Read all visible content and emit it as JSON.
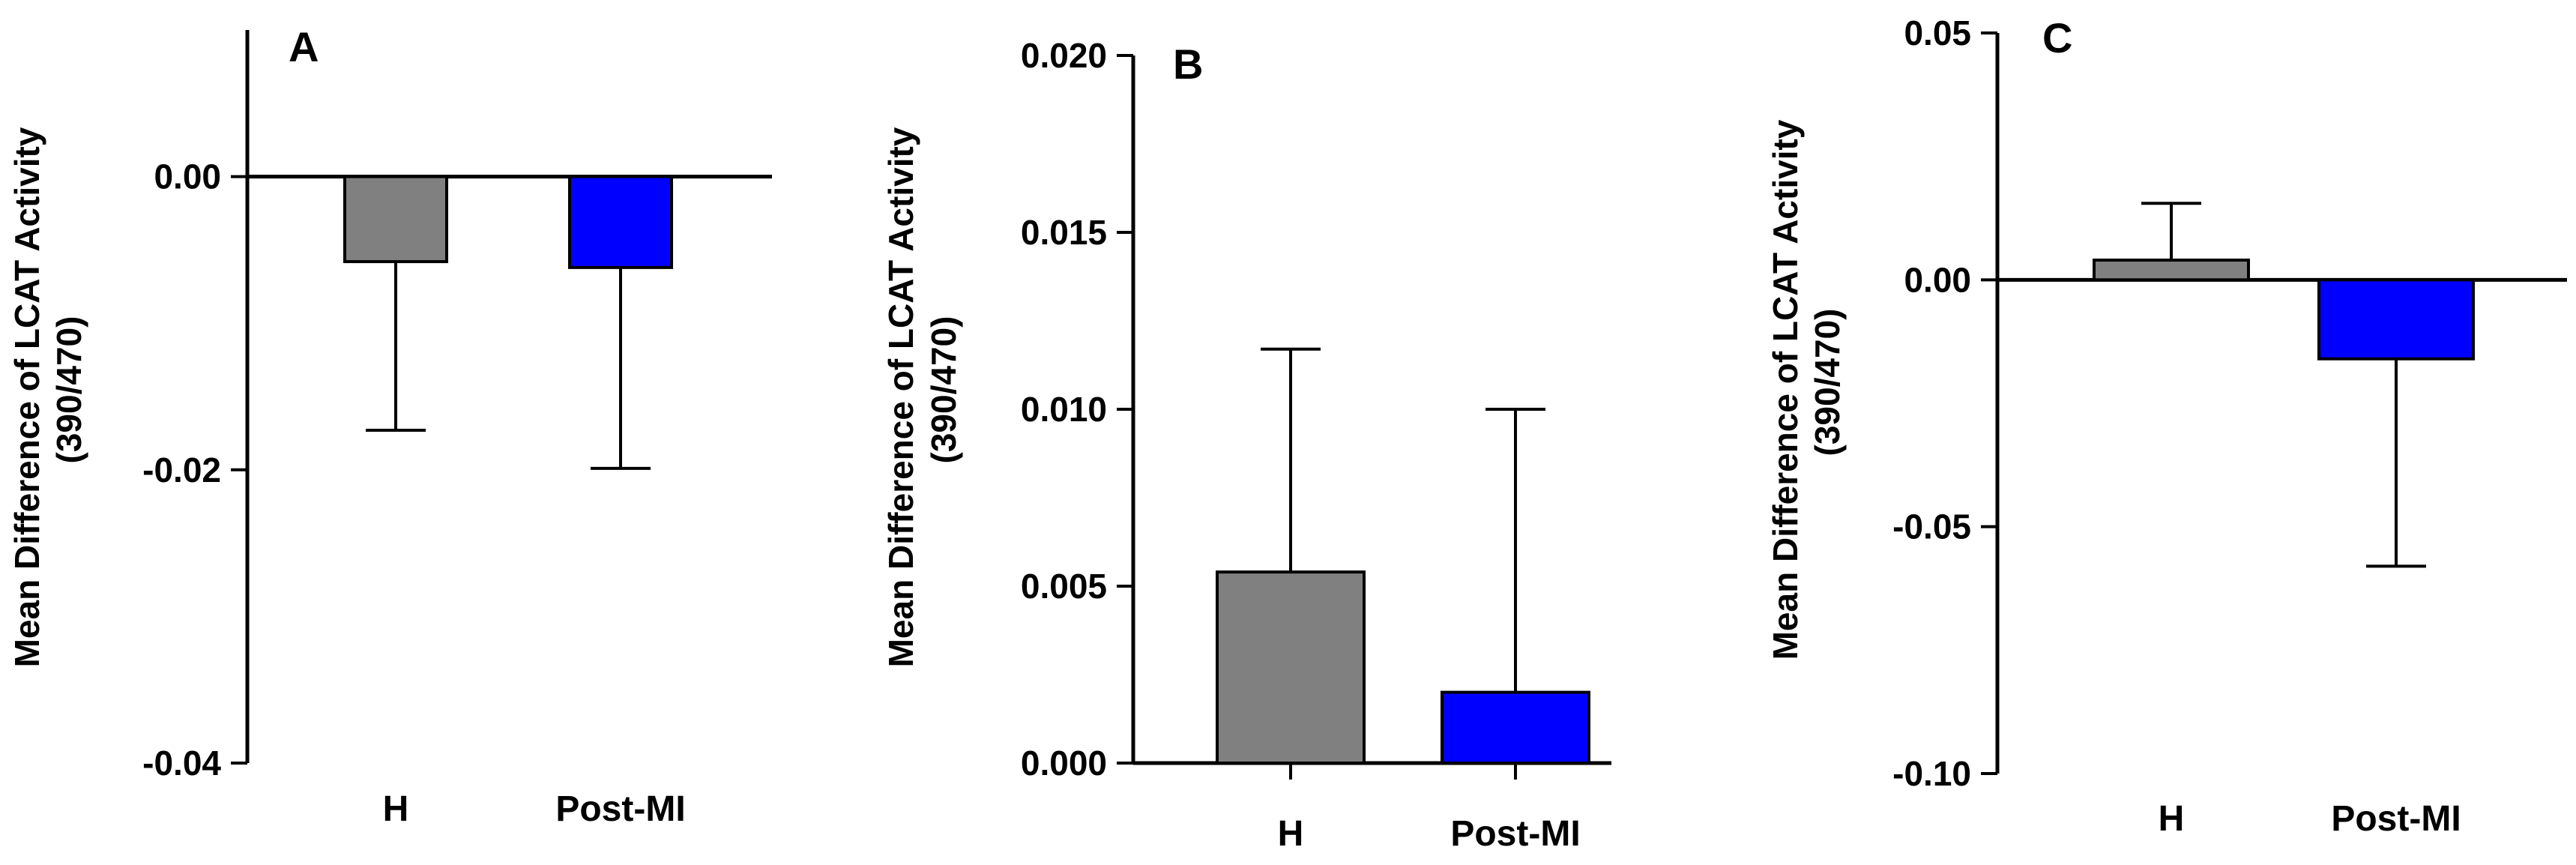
{
  "chart_data": [
    {
      "type": "bar",
      "panel_label": "A",
      "categories": [
        "H",
        "Post-MI"
      ],
      "values": [
        -0.0058,
        -0.0062
      ],
      "error_bars": [
        0.0115,
        0.0137
      ],
      "error_direction": "down",
      "ylabel_line1": "Mean Difference of LCAT Activity",
      "ylabel_line2": "(390/470)",
      "ylim": [
        -0.04,
        0.01
      ],
      "ticks": [
        -0.04,
        -0.02,
        0.0
      ],
      "tick_labels": [
        "-0.04",
        "-0.02",
        "0.00"
      ],
      "colors": [
        "#808080",
        "#0000ff"
      ]
    },
    {
      "type": "bar",
      "panel_label": "B",
      "categories": [
        "H",
        "Post-MI"
      ],
      "values": [
        0.0054,
        0.002
      ],
      "error_bars": [
        0.0063,
        0.008
      ],
      "error_direction": "up",
      "ylabel_line1": "Mean Difference of LCAT Activity",
      "ylabel_line2": "(390/470)",
      "ylim": [
        0,
        0.02
      ],
      "ticks": [
        0.0,
        0.005,
        0.01,
        0.015,
        0.02
      ],
      "tick_labels": [
        "0.000",
        "0.005",
        "0.010",
        "0.015",
        "0.020"
      ],
      "colors": [
        "#808080",
        "#0000ff"
      ]
    },
    {
      "type": "bar",
      "panel_label": "C",
      "categories": [
        "H",
        "Post-MI"
      ],
      "values": [
        0.004,
        -0.016
      ],
      "error_bars": [
        0.0115,
        0.042
      ],
      "error_direction": "away",
      "ylabel_line1": "Mean Difference of LCAT Activity",
      "ylabel_line2": "(390/470)",
      "ylim": [
        -0.1,
        0.05
      ],
      "ticks": [
        -0.1,
        -0.05,
        0.0,
        0.05
      ],
      "tick_labels": [
        "-0.10",
        "-0.05",
        "0.00",
        "0.05"
      ],
      "colors": [
        "#808080",
        "#0000ff"
      ]
    }
  ]
}
